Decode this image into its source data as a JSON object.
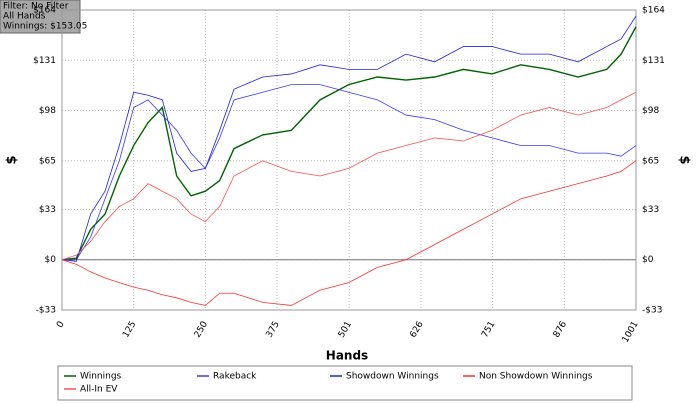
{
  "chart_data": {
    "type": "line",
    "annotations": [
      "Filter: No Filter",
      "All Hands",
      "Winnings: $153.05"
    ],
    "x_label": "Hands",
    "y_label": "$",
    "y2_label": "$",
    "x": [
      0,
      25,
      50,
      75,
      100,
      125,
      150,
      175,
      200,
      225,
      250,
      275,
      300,
      350,
      400,
      450,
      500,
      550,
      600,
      650,
      700,
      750,
      800,
      850,
      900,
      950,
      975,
      1001
    ],
    "series": [
      {
        "name": "Winnings",
        "color": "#006400",
        "values": [
          0,
          1,
          20,
          30,
          55,
          75,
          90,
          100,
          55,
          42,
          45,
          52,
          73,
          82,
          85,
          105,
          115,
          120,
          118,
          120,
          125,
          122,
          128,
          125,
          120,
          125,
          135,
          153
        ]
      },
      {
        "name": "Rakeback",
        "color": "#3a3aff",
        "values": [
          0,
          0,
          15,
          40,
          65,
          100,
          105,
          95,
          85,
          70,
          60,
          80,
          105,
          110,
          115,
          115,
          110,
          105,
          95,
          92,
          85,
          80,
          75,
          75,
          70,
          70,
          68,
          75
        ]
      },
      {
        "name": "Showdown Winnings",
        "color": "#2020e0",
        "values": [
          0,
          -1,
          30,
          45,
          75,
          110,
          108,
          105,
          70,
          58,
          60,
          85,
          112,
          120,
          122,
          128,
          125,
          125,
          135,
          130,
          140,
          140,
          135,
          135,
          130,
          140,
          145,
          160
        ]
      },
      {
        "name": "Non Showdown Winnings",
        "color": "#ff3030",
        "values": [
          0,
          -3,
          -8,
          -12,
          -15,
          -18,
          -20,
          -23,
          -25,
          -28,
          -30,
          -22,
          -22,
          -28,
          -30,
          -20,
          -15,
          -5,
          0,
          10,
          20,
          30,
          40,
          45,
          50,
          55,
          58,
          65
        ]
      },
      {
        "name": "All-In EV",
        "color": "#ff5050",
        "values": [
          0,
          3,
          12,
          25,
          35,
          40,
          50,
          45,
          40,
          30,
          25,
          35,
          55,
          65,
          58,
          55,
          60,
          70,
          75,
          80,
          78,
          85,
          95,
          100,
          95,
          100,
          105,
          110
        ]
      }
    ],
    "xlim": [
      0,
      1001
    ],
    "xticks": [
      0,
      125,
      250,
      375,
      501,
      626,
      751,
      876,
      1001
    ],
    "ylim": [
      -33,
      164
    ],
    "yticks": [
      {
        "value": -33,
        "label": "-$33"
      },
      {
        "value": 0,
        "label": "$0"
      },
      {
        "value": 33,
        "label": "$33"
      },
      {
        "value": 65,
        "label": "$65"
      },
      {
        "value": 98,
        "label": "$98"
      },
      {
        "value": 131,
        "label": "$131"
      },
      {
        "value": 164,
        "label": "$164"
      }
    ],
    "y2lim": [
      -33,
      164
    ],
    "y2ticks": [
      {
        "value": -33,
        "label": "-$33"
      },
      {
        "value": 0,
        "label": "$0"
      },
      {
        "value": 33,
        "label": "$33"
      },
      {
        "value": 65,
        "label": "$65"
      },
      {
        "value": 98,
        "label": "$98"
      },
      {
        "value": 131,
        "label": "$131"
      },
      {
        "value": 164,
        "label": "$164"
      }
    ],
    "grid": true
  }
}
